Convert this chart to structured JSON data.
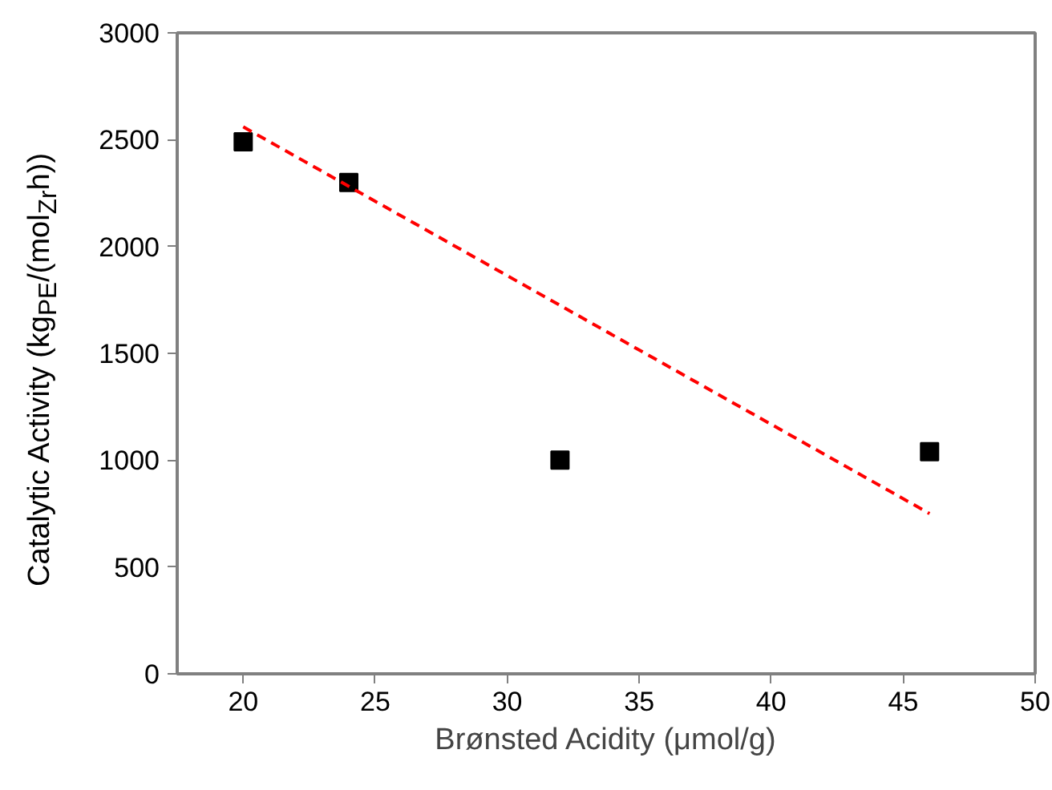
{
  "chart_data": {
    "type": "scatter",
    "xlabel": "Brønsted Acidity (μmol/g)",
    "ylabel": "Catalytic Activity (kg$_{PE}$/(mol$_{Zr}$h))",
    "xlim": [
      17.5,
      50
    ],
    "xticks": [
      20,
      25,
      30,
      35,
      40,
      45,
      50
    ],
    "ylim": [
      0,
      3000
    ],
    "yticks": [
      0,
      500,
      1000,
      1500,
      2000,
      2500,
      3000
    ],
    "marker": "square",
    "grid": false,
    "series": [
      {
        "color": "#000000",
        "x": [
          20,
          24,
          32,
          46
        ],
        "values": [
          2490,
          2300,
          1000,
          1040
        ]
      },
      {
        "type": "line",
        "color": "#ff0000",
        "line_style": "dashed",
        "marker": "none",
        "x": [
          20,
          46
        ],
        "values": [
          2560,
          750
        ]
      }
    ]
  }
}
